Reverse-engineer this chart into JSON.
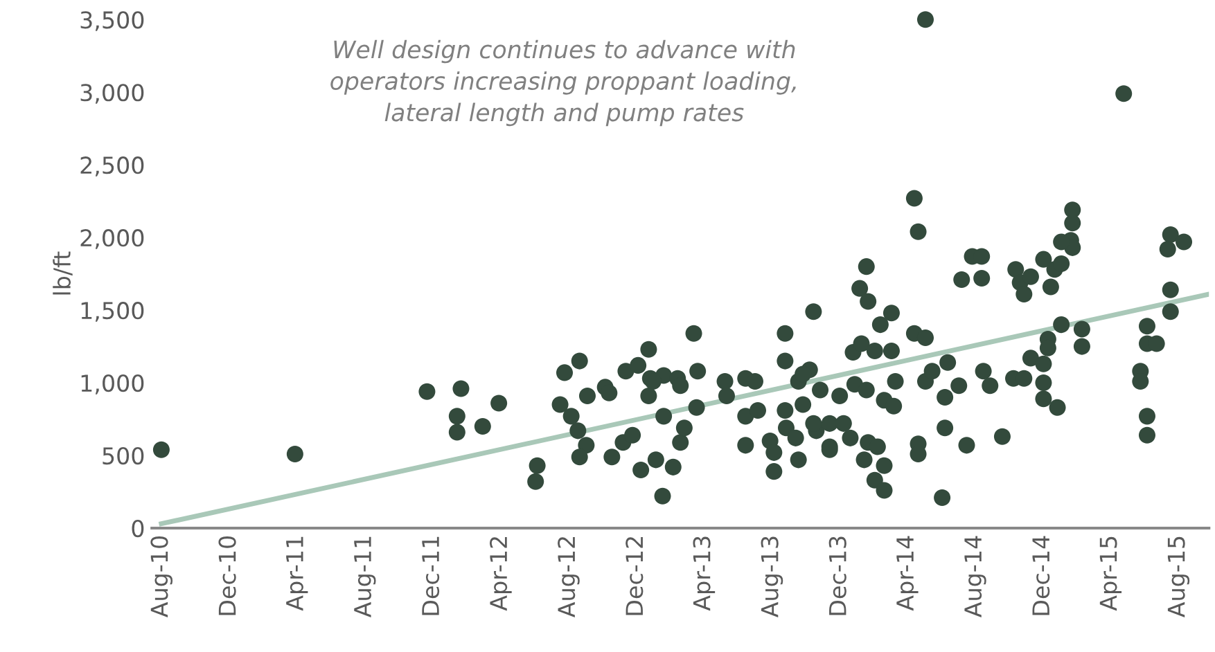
{
  "chart_data": {
    "type": "scatter",
    "ylabel": "lb/ft",
    "annotations": [
      "Well design continues to advance with\noperators increasing proppant loading,\nlateral length and pump rates"
    ],
    "xlim": [
      "2010-07-15",
      "2015-09-25"
    ],
    "xticks": [
      {
        "value": "2010-08-01",
        "label": "Aug-10"
      },
      {
        "value": "2010-12-01",
        "label": "Dec-10"
      },
      {
        "value": "2011-04-01",
        "label": "Apr-11"
      },
      {
        "value": "2011-08-01",
        "label": "Aug-11"
      },
      {
        "value": "2011-12-01",
        "label": "Dec-11"
      },
      {
        "value": "2012-04-01",
        "label": "Apr-12"
      },
      {
        "value": "2012-08-01",
        "label": "Aug-12"
      },
      {
        "value": "2012-12-01",
        "label": "Dec-12"
      },
      {
        "value": "2013-04-01",
        "label": "Apr-13"
      },
      {
        "value": "2013-08-01",
        "label": "Aug-13"
      },
      {
        "value": "2013-12-01",
        "label": "Dec-13"
      },
      {
        "value": "2014-04-01",
        "label": "Apr-14"
      },
      {
        "value": "2014-08-01",
        "label": "Aug-14"
      },
      {
        "value": "2014-12-01",
        "label": "Dec-14"
      },
      {
        "value": "2015-04-01",
        "label": "Apr-15"
      },
      {
        "value": "2015-08-01",
        "label": "Aug-15"
      }
    ],
    "ylim": [
      0,
      3500
    ],
    "yticks": [
      {
        "value": 0,
        "label": "0"
      },
      {
        "value": 500,
        "label": "500"
      },
      {
        "value": 1000,
        "label": "1,000"
      },
      {
        "value": 1500,
        "label": "1,500"
      },
      {
        "value": 2000,
        "label": "2,000"
      },
      {
        "value": 2500,
        "label": "2,500"
      },
      {
        "value": 3000,
        "label": "3,000"
      },
      {
        "value": 3500,
        "label": "3,500"
      }
    ],
    "grid": false,
    "legend": false,
    "series": [
      {
        "color": "#334a3c",
        "marker": "circle",
        "x": [
          "2010-08-01",
          "2011-03-29",
          "2011-11-21",
          "2012-01-14",
          "2012-01-14",
          "2012-01-21",
          "2012-02-29",
          "2012-03-29",
          "2012-06-06",
          "2012-06-03",
          "2012-07-25",
          "2012-08-21",
          "2012-07-17",
          "2012-08-06",
          "2012-08-18",
          "2012-09-02",
          "2012-08-21",
          "2012-09-04",
          "2012-10-06",
          "2012-10-13",
          "2012-11-12",
          "2012-12-04",
          "2012-12-23",
          "2012-12-26",
          "2012-12-23",
          "2013-01-19",
          "2013-01-19",
          "2012-10-18",
          "2012-11-07",
          "2012-11-24",
          "2012-12-09",
          "2013-01-05",
          "2013-01-17",
          "2013-02-05",
          "2013-02-18",
          "2013-03-14",
          "2012-12-31",
          "2013-02-13",
          "2013-02-18",
          "2013-03-21",
          "2013-03-19",
          "2013-02-25",
          "2013-05-09",
          "2013-05-12",
          "2013-06-15",
          "2013-07-02",
          "2013-06-15",
          "2013-07-07",
          "2013-06-15",
          "2013-07-29",
          "2013-08-05",
          "2013-08-05",
          "2013-08-25",
          "2013-08-25",
          "2013-10-15",
          "2013-09-18",
          "2013-09-26",
          "2013-10-08",
          "2013-10-27",
          "2013-08-25",
          "2013-08-27",
          "2013-09-13",
          "2013-09-18",
          "2013-10-20",
          "2013-11-13",
          "2013-11-13",
          "2013-12-01",
          "2014-04-14",
          "2014-04-21",
          "2014-01-18",
          "2014-01-06",
          "2014-01-21",
          "2014-02-12",
          "2014-03-04",
          "2013-12-25",
          "2014-01-09",
          "2014-02-02",
          "2014-03-04",
          "2014-04-14",
          "2014-05-04",
          "2014-03-11",
          "2013-12-28",
          "2014-01-18",
          "2014-02-19",
          "2014-03-08",
          "2013-09-26",
          "2013-10-15",
          "2013-12-08",
          "2013-12-20",
          "2014-01-21",
          "2014-02-07",
          "2014-01-14",
          "2014-02-19",
          "2014-02-02",
          "2014-02-19",
          "2013-11-13",
          "2014-04-21",
          "2014-04-21",
          "2014-06-08",
          "2014-07-17",
          "2014-09-19",
          "2014-06-03",
          "2014-05-04",
          "2014-05-16",
          "2014-06-13",
          "2014-06-08",
          "2014-07-03",
          "2014-08-16",
          "2014-08-28",
          "2014-07-08",
          "2014-07-27",
          "2014-08-13",
          "2014-08-13",
          "2014-10-13",
          "2014-10-21",
          "2014-10-28",
          "2014-11-09",
          "2014-12-02",
          "2014-12-22",
          "2014-12-15",
          "2015-01-03",
          "2015-01-23",
          "2015-01-23",
          "2015-01-20",
          "2015-01-23",
          "2015-01-03",
          "2015-01-03",
          "2015-02-09",
          "2015-02-09",
          "2014-12-10",
          "2014-12-10",
          "2014-11-09",
          "2014-12-02",
          "2014-12-02",
          "2014-12-02",
          "2014-12-27",
          "2014-10-09",
          "2014-10-28",
          "2015-06-06",
          "2015-06-06",
          "2015-06-23",
          "2015-05-25",
          "2015-05-25",
          "2015-06-06",
          "2015-06-06",
          "2015-07-18",
          "2015-08-11",
          "2015-07-13",
          "2015-07-18",
          "2015-07-18",
          "2015-04-25",
          "2014-05-04"
        ],
        "values": [
          540,
          510,
          940,
          770,
          660,
          960,
          700,
          860,
          430,
          320,
          1070,
          1150,
          850,
          770,
          670,
          570,
          490,
          910,
          970,
          930,
          1080,
          1120,
          1230,
          1030,
          910,
          1050,
          770,
          490,
          590,
          640,
          400,
          470,
          220,
          420,
          590,
          1340,
          1010,
          1030,
          980,
          1080,
          830,
          690,
          1010,
          910,
          1030,
          1010,
          770,
          810,
          570,
          600,
          520,
          390,
          1340,
          1150,
          1490,
          1010,
          850,
          1090,
          950,
          810,
          690,
          620,
          470,
          670,
          560,
          720,
          910,
          2270,
          2040,
          1800,
          1650,
          1560,
          1400,
          1480,
          1210,
          1270,
          1220,
          1220,
          1340,
          1310,
          1010,
          990,
          950,
          880,
          840,
          1060,
          720,
          720,
          620,
          590,
          560,
          470,
          430,
          330,
          260,
          540,
          580,
          510,
          690,
          570,
          630,
          210,
          1010,
          1080,
          1140,
          900,
          980,
          1080,
          980,
          1710,
          1870,
          1870,
          1720,
          1780,
          1690,
          1610,
          1730,
          1850,
          1780,
          1660,
          1820,
          2190,
          2100,
          1980,
          1930,
          1970,
          1400,
          1370,
          1250,
          1300,
          1240,
          1170,
          1130,
          1000,
          890,
          830,
          1030,
          1030,
          1390,
          1270,
          1270,
          1080,
          1010,
          770,
          640,
          2020,
          1970,
          1920,
          1640,
          1490,
          2990,
          3500
        ]
      },
      {
        "type": "line",
        "color": "#a9c8b8",
        "line_style": "solid",
        "x": [
          "2010-08-01",
          "2015-09-25"
        ],
        "values": [
          30,
          1610
        ]
      }
    ]
  }
}
